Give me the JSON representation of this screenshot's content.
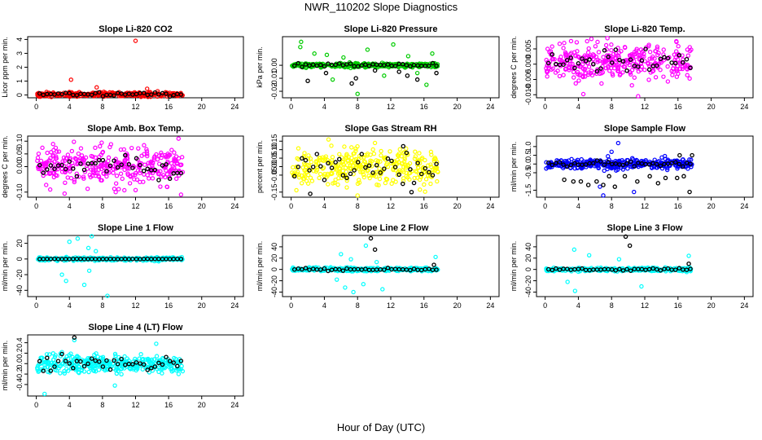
{
  "page": {
    "title": "NWR_110202  Slope Diagnostics",
    "xlabel": "Hour of Day (UTC)"
  },
  "chart_data": [
    {
      "type": "scatter",
      "title": "Slope Li-820 CO2",
      "ylabel": "Licor ppm per min.",
      "color": "#ff0000",
      "xlim": [
        0,
        24
      ],
      "ylim": [
        -0.2,
        4.2
      ],
      "xticks": [
        "0",
        "4",
        "8",
        "12",
        "16",
        "20",
        "24"
      ],
      "yticks": [
        {
          "v": 0,
          "label": "0"
        },
        {
          "v": 1,
          "label": "1"
        },
        {
          "v": 2,
          "label": "2"
        },
        {
          "v": 3,
          "label": "3"
        },
        {
          "v": 4,
          "label": "4"
        }
      ],
      "band": {
        "center": 0.05,
        "spread": 0.15
      },
      "black_spread": 0.12,
      "outliers": [
        {
          "x": 4.2,
          "y": 1.1
        },
        {
          "x": 12.0,
          "y": 3.9
        },
        {
          "x": 7.3,
          "y": 0.55
        },
        {
          "x": 13.4,
          "y": 0.45
        }
      ],
      "black_outliers": []
    },
    {
      "type": "scatter",
      "title": "Slope Li-820 Pressure",
      "ylabel": "kPa per min.",
      "color": "#00cc00",
      "xlim": [
        0,
        24
      ],
      "ylim": [
        -0.025,
        0.022
      ],
      "xticks": [
        "0",
        "4",
        "8",
        "12",
        "16",
        "20",
        "24"
      ],
      "yticks": [
        {
          "v": 0,
          "label": "0.00"
        },
        {
          "v": -0.01,
          "label": "-0.01"
        },
        {
          "v": -0.02,
          "label": "-0.02"
        }
      ],
      "band": {
        "center": 0.0,
        "spread": 0.0015
      },
      "black_spread": 0.0015,
      "outliers": [
        {
          "x": 1.2,
          "y": 0.018
        },
        {
          "x": 1.1,
          "y": 0.014
        },
        {
          "x": 2.8,
          "y": 0.009
        },
        {
          "x": 4.3,
          "y": 0.008
        },
        {
          "x": 5.0,
          "y": -0.011
        },
        {
          "x": 6.3,
          "y": 0.006
        },
        {
          "x": 8.0,
          "y": -0.022
        },
        {
          "x": 9.2,
          "y": 0.012
        },
        {
          "x": 11.2,
          "y": -0.008
        },
        {
          "x": 12.3,
          "y": 0.016
        },
        {
          "x": 14.1,
          "y": 0.007
        },
        {
          "x": 15.2,
          "y": -0.006
        },
        {
          "x": 16.3,
          "y": -0.015
        },
        {
          "x": 17.0,
          "y": 0.009
        }
      ],
      "black_outliers": [
        {
          "x": 2.0,
          "y": -0.012
        },
        {
          "x": 4.2,
          "y": -0.006
        },
        {
          "x": 7.3,
          "y": -0.014
        },
        {
          "x": 7.8,
          "y": -0.01
        },
        {
          "x": 10.1,
          "y": -0.004
        },
        {
          "x": 13.0,
          "y": -0.005
        },
        {
          "x": 14.0,
          "y": -0.008
        },
        {
          "x": 15.2,
          "y": -0.011
        },
        {
          "x": 17.5,
          "y": -0.006
        }
      ]
    },
    {
      "type": "scatter",
      "title": "Slope Li-820 Temp.",
      "ylabel": "degrees C per min.",
      "color": "#ff00ff",
      "xlim": [
        0,
        24
      ],
      "ylim": [
        -0.011,
        0.009
      ],
      "xticks": [
        "0",
        "4",
        "8",
        "12",
        "16",
        "20",
        "24"
      ],
      "yticks": [
        {
          "v": -0.01,
          "label": "-0.010"
        },
        {
          "v": -0.005,
          "label": "-0.005"
        },
        {
          "v": 0,
          "label": "0.000"
        },
        {
          "v": 0.005,
          "label": "0.005"
        }
      ],
      "band": {
        "center": 0.0005,
        "spread": 0.0058
      },
      "black_spread": 0.004,
      "outliers": [
        {
          "x": 7.5,
          "y": 0.0085
        },
        {
          "x": 11.2,
          "y": -0.0105
        },
        {
          "x": 4.6,
          "y": -0.0098
        },
        {
          "x": 15.8,
          "y": 0.0075
        }
      ],
      "black_outliers": []
    },
    {
      "type": "scatter",
      "title": "Slope Amb. Box Temp.",
      "ylabel": "degrees C per min.",
      "color": "#ff00ff",
      "xlim": [
        0,
        24
      ],
      "ylim": [
        -0.12,
        0.12
      ],
      "xticks": [
        "0",
        "4",
        "8",
        "12",
        "16",
        "20",
        "24"
      ],
      "yticks": [
        {
          "v": -0.1,
          "label": "-0.10"
        },
        {
          "v": 0,
          "label": "0.00"
        },
        {
          "v": 0.05,
          "label": "0.05"
        },
        {
          "v": 0.1,
          "label": "0.10"
        }
      ],
      "band": {
        "center": 0.0,
        "spread": 0.07
      },
      "black_spread": 0.045,
      "outliers": [
        {
          "x": 17.2,
          "y": 0.11
        },
        {
          "x": 17.5,
          "y": -0.11
        },
        {
          "x": 9.6,
          "y": -0.1
        }
      ],
      "black_outliers": []
    },
    {
      "type": "scatter",
      "title": "Slope Gas Stream RH",
      "ylabel": "percent per min.",
      "color": "#ffff00",
      "xlim": [
        0,
        24
      ],
      "ylim": [
        -0.18,
        0.18
      ],
      "xticks": [
        "0",
        "4",
        "8",
        "12",
        "16",
        "20",
        "24"
      ],
      "yticks": [
        {
          "v": -0.15,
          "label": "-0.15"
        },
        {
          "v": -0.05,
          "label": "-0.05"
        },
        {
          "v": 0,
          "label": "0.00"
        },
        {
          "v": 0.05,
          "label": "0.05"
        },
        {
          "v": 0.1,
          "label": "0.10"
        },
        {
          "v": 0.15,
          "label": "0.15"
        }
      ],
      "band": {
        "center": 0.0,
        "spread": 0.11
      },
      "black_spread": 0.1,
      "outliers": [
        {
          "x": 4.5,
          "y": 0.16
        },
        {
          "x": 8.0,
          "y": -0.17
        }
      ],
      "black_outliers": [
        {
          "x": 2.3,
          "y": -0.16
        },
        {
          "x": 13.5,
          "y": 0.12
        },
        {
          "x": 14.5,
          "y": -0.15
        }
      ]
    },
    {
      "type": "scatter",
      "title": "Slope Sample Flow",
      "ylabel": "ml/min per min.",
      "color": "#0000ff",
      "xlim": [
        0,
        24
      ],
      "ylim": [
        -1.9,
        1.6
      ],
      "xticks": [
        "0",
        "4",
        "8",
        "12",
        "16",
        "20",
        "24"
      ],
      "yticks": [
        {
          "v": -1.5,
          "label": "-1.5"
        },
        {
          "v": -0.5,
          "label": "-0.5"
        },
        {
          "v": 0,
          "label": "0.0"
        },
        {
          "v": 0.5,
          "label": "0.5"
        },
        {
          "v": 1,
          "label": "1.0"
        }
      ],
      "band": {
        "center": 0.0,
        "spread": 0.3
      },
      "black_spread": 0.15,
      "outliers": [
        {
          "x": 7.0,
          "y": -1.8
        },
        {
          "x": 8.8,
          "y": 1.2
        },
        {
          "x": 10.7,
          "y": -1.6
        },
        {
          "x": 8.0,
          "y": 0.7
        },
        {
          "x": 6.6,
          "y": -1.3
        }
      ],
      "black_outliers": [
        {
          "x": 2.3,
          "y": -0.9
        },
        {
          "x": 3.4,
          "y": -1.0
        },
        {
          "x": 4.3,
          "y": -1.0
        },
        {
          "x": 5.2,
          "y": -1.2
        },
        {
          "x": 6.2,
          "y": -1.0
        },
        {
          "x": 7.0,
          "y": -1.2
        },
        {
          "x": 8.4,
          "y": -1.3
        },
        {
          "x": 9.6,
          "y": -0.7
        },
        {
          "x": 11.1,
          "y": -1.0
        },
        {
          "x": 12.6,
          "y": -0.7
        },
        {
          "x": 13.6,
          "y": -1.1
        },
        {
          "x": 14.5,
          "y": -0.8
        },
        {
          "x": 15.9,
          "y": -0.8
        },
        {
          "x": 16.7,
          "y": -0.7
        },
        {
          "x": 17.4,
          "y": -1.6
        },
        {
          "x": 16.2,
          "y": 0.5
        },
        {
          "x": 17.7,
          "y": 0.5
        },
        {
          "x": 7.7,
          "y": -0.7
        }
      ]
    },
    {
      "type": "scatter",
      "title": "Slope Line 1 Flow",
      "ylabel": "ml/min per min.",
      "color": "#00ffff",
      "xlim": [
        0,
        24
      ],
      "ylim": [
        -48,
        30
      ],
      "xticks": [
        "0",
        "4",
        "8",
        "12",
        "16",
        "20",
        "24"
      ],
      "yticks": [
        {
          "v": -40,
          "label": "-40"
        },
        {
          "v": -20,
          "label": "-20"
        },
        {
          "v": 0,
          "label": "0"
        },
        {
          "v": 20,
          "label": "20"
        }
      ],
      "band": {
        "center": 0,
        "spread": 2
      },
      "black_spread": 0.2,
      "outliers": [
        {
          "x": 4.0,
          "y": 22
        },
        {
          "x": 5.0,
          "y": 26
        },
        {
          "x": 6.7,
          "y": 29
        },
        {
          "x": 6.3,
          "y": 14
        },
        {
          "x": 3.1,
          "y": -20
        },
        {
          "x": 3.6,
          "y": -28
        },
        {
          "x": 5.8,
          "y": -33
        },
        {
          "x": 8.6,
          "y": -47
        },
        {
          "x": 6.4,
          "y": -15
        },
        {
          "x": 7.2,
          "y": 10
        }
      ],
      "black_outliers": []
    },
    {
      "type": "scatter",
      "title": "Slope Line 2 Flow",
      "ylabel": "ml/min per min.",
      "color": "#00ffff",
      "xlim": [
        0,
        24
      ],
      "ylim": [
        -48,
        60
      ],
      "xticks": [
        "0",
        "4",
        "8",
        "12",
        "16",
        "20",
        "24"
      ],
      "yticks": [
        {
          "v": -40,
          "label": "-40"
        },
        {
          "v": -20,
          "label": "-20"
        },
        {
          "v": 0,
          "label": "0"
        },
        {
          "v": 20,
          "label": "20"
        },
        {
          "v": 40,
          "label": "40"
        }
      ],
      "band": {
        "center": 0,
        "spread": 3
      },
      "black_spread": 2,
      "outliers": [
        {
          "x": 6.0,
          "y": 27
        },
        {
          "x": 7.2,
          "y": 18
        },
        {
          "x": 9.0,
          "y": 42
        },
        {
          "x": 10.3,
          "y": 13
        },
        {
          "x": 5.5,
          "y": -18
        },
        {
          "x": 6.5,
          "y": -32
        },
        {
          "x": 7.5,
          "y": -40
        },
        {
          "x": 8.7,
          "y": -26
        },
        {
          "x": 11.0,
          "y": -35
        },
        {
          "x": 17.4,
          "y": 22
        }
      ],
      "black_outliers": [
        {
          "x": 9.6,
          "y": 55
        },
        {
          "x": 10.1,
          "y": 35
        },
        {
          "x": 17.2,
          "y": 8
        }
      ]
    },
    {
      "type": "scatter",
      "title": "Slope Line 3 Flow",
      "ylabel": "ml/min per min.",
      "color": "#00ffff",
      "xlim": [
        0,
        24
      ],
      "ylim": [
        -48,
        60
      ],
      "xticks": [
        "0",
        "4",
        "8",
        "12",
        "16",
        "20",
        "24"
      ],
      "yticks": [
        {
          "v": -40,
          "label": "-40"
        },
        {
          "v": -20,
          "label": "-20"
        },
        {
          "v": 0,
          "label": "0"
        },
        {
          "v": 20,
          "label": "20"
        },
        {
          "v": 40,
          "label": "40"
        }
      ],
      "band": {
        "center": 0,
        "spread": 3
      },
      "black_spread": 2,
      "outliers": [
        {
          "x": 3.5,
          "y": 35
        },
        {
          "x": 5.3,
          "y": 25
        },
        {
          "x": 2.7,
          "y": -22
        },
        {
          "x": 3.6,
          "y": -38
        },
        {
          "x": 11.6,
          "y": -30
        },
        {
          "x": 17.3,
          "y": 24
        },
        {
          "x": 8.9,
          "y": 18
        }
      ],
      "black_outliers": [
        {
          "x": 9.7,
          "y": 58
        },
        {
          "x": 10.2,
          "y": 42
        },
        {
          "x": 17.3,
          "y": 10
        }
      ]
    },
    {
      "type": "scatter",
      "title": "Slope Line 4 (LT) Flow",
      "ylabel": "ml/min per min.",
      "color": "#00ffff",
      "xlim": [
        0,
        24
      ],
      "ylim": [
        -0.62,
        0.55
      ],
      "xticks": [
        "0",
        "4",
        "8",
        "12",
        "16",
        "20",
        "24"
      ],
      "yticks": [
        {
          "v": -0.4,
          "label": "-0.4"
        },
        {
          "v": -0.2,
          "label": "-0.2"
        },
        {
          "v": 0,
          "label": "0.0"
        },
        {
          "v": 0.2,
          "label": "0.2"
        },
        {
          "v": 0.4,
          "label": "0.4"
        }
      ],
      "band": {
        "center": 0.0,
        "spread": 0.18
      },
      "black_spread": 0.16,
      "outliers": [
        {
          "x": 1.0,
          "y": -0.58
        },
        {
          "x": 4.6,
          "y": 0.45
        },
        {
          "x": 9.5,
          "y": -0.42
        },
        {
          "x": 14.5,
          "y": 0.38
        }
      ],
      "black_outliers": [
        {
          "x": 4.6,
          "y": 0.5
        }
      ]
    }
  ]
}
